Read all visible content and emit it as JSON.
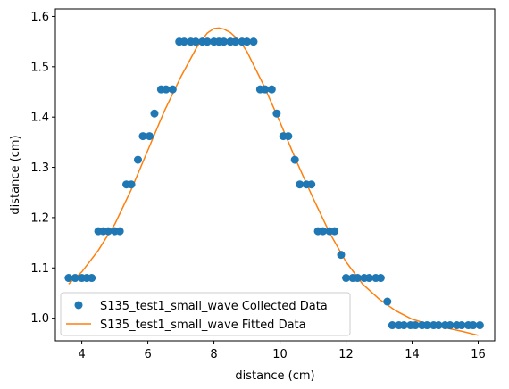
{
  "chart_data": {
    "type": "scatter",
    "title": "",
    "xlabel": "distance (cm)",
    "ylabel": "distance (cm)",
    "xlim": [
      3.2,
      16.5
    ],
    "ylim": [
      0.955,
      1.615
    ],
    "xticks": [
      "4",
      "6",
      "8",
      "10",
      "12",
      "14",
      "16"
    ],
    "yticks": [
      "1.0",
      "1.1",
      "1.2",
      "1.3",
      "1.4",
      "1.5",
      "1.6"
    ],
    "grid": false,
    "legend_position": "lower-left",
    "series": [
      {
        "name": "S135_test1_small_wave Collected Data",
        "kind": "scatter",
        "color": "#1f77b4",
        "x": [
          3.6,
          3.8,
          4.0,
          4.15,
          4.3,
          4.5,
          4.65,
          4.8,
          5.0,
          5.15,
          5.35,
          5.5,
          5.7,
          5.85,
          6.05,
          6.2,
          6.4,
          6.55,
          6.75,
          6.95,
          7.1,
          7.3,
          7.45,
          7.65,
          7.8,
          8.0,
          8.15,
          8.3,
          8.5,
          8.65,
          8.85,
          9.0,
          9.2,
          9.4,
          9.55,
          9.75,
          9.9,
          10.1,
          10.25,
          10.45,
          10.6,
          10.8,
          10.95,
          11.15,
          11.3,
          11.5,
          11.65,
          11.85,
          12.0,
          12.2,
          12.35,
          12.55,
          12.7,
          12.9,
          13.05,
          13.25,
          13.4,
          13.6,
          13.75,
          13.95,
          14.1,
          14.3,
          14.45,
          14.65,
          14.8,
          15.0,
          15.15,
          15.35,
          15.5,
          15.7,
          15.85,
          16.05
        ],
        "y": [
          1.08,
          1.08,
          1.08,
          1.08,
          1.08,
          1.173,
          1.173,
          1.173,
          1.173,
          1.173,
          1.266,
          1.266,
          1.315,
          1.362,
          1.362,
          1.407,
          1.455,
          1.455,
          1.455,
          1.55,
          1.55,
          1.55,
          1.55,
          1.55,
          1.55,
          1.55,
          1.55,
          1.55,
          1.55,
          1.55,
          1.55,
          1.55,
          1.55,
          1.455,
          1.455,
          1.455,
          1.407,
          1.362,
          1.362,
          1.315,
          1.266,
          1.266,
          1.266,
          1.173,
          1.173,
          1.173,
          1.173,
          1.126,
          1.08,
          1.08,
          1.08,
          1.08,
          1.08,
          1.08,
          1.08,
          1.033,
          0.986,
          0.986,
          0.986,
          0.986,
          0.986,
          0.986,
          0.986,
          0.986,
          0.986,
          0.986,
          0.986,
          0.986,
          0.986,
          0.986,
          0.986,
          0.986
        ]
      },
      {
        "name": "S135_test1_small_wave Fitted Data",
        "kind": "line",
        "color": "#ff7f0e",
        "x": [
          3.6,
          4.0,
          4.5,
          5.0,
          5.5,
          6.0,
          6.5,
          7.0,
          7.5,
          7.8,
          8.0,
          8.15,
          8.3,
          8.5,
          8.8,
          9.0,
          9.5,
          10.0,
          10.5,
          11.0,
          11.5,
          12.0,
          12.5,
          13.0,
          13.5,
          14.0,
          14.5,
          15.0,
          15.5,
          16.0
        ],
        "y": [
          1.068,
          1.092,
          1.135,
          1.187,
          1.256,
          1.334,
          1.412,
          1.48,
          1.541,
          1.567,
          1.576,
          1.577,
          1.575,
          1.568,
          1.55,
          1.53,
          1.464,
          1.39,
          1.312,
          1.239,
          1.17,
          1.112,
          1.068,
          1.038,
          1.015,
          0.998,
          0.988,
          0.981,
          0.974,
          0.966
        ]
      }
    ]
  }
}
